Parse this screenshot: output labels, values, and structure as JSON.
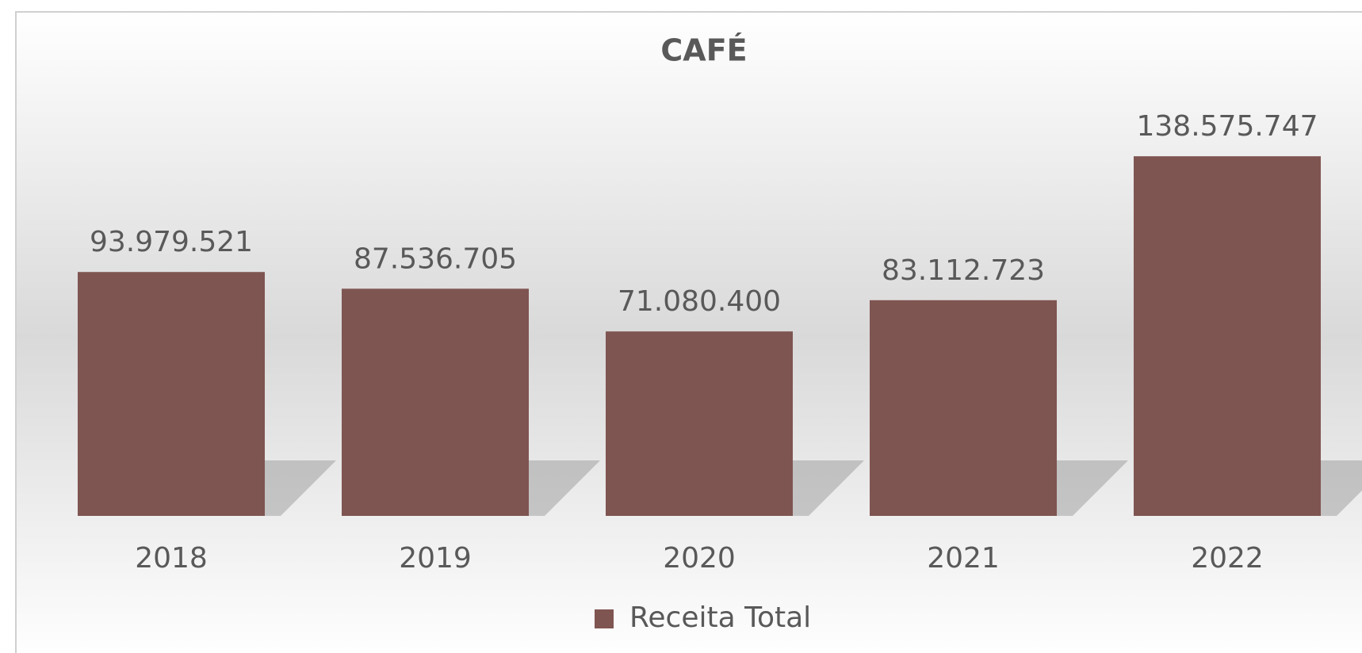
{
  "chart_data": {
    "type": "bar",
    "title": "CAFÉ",
    "categories": [
      "2018",
      "2019",
      "2020",
      "2021",
      "2022"
    ],
    "series": [
      {
        "name": "Receita Total",
        "color": "#7f5551",
        "values": [
          93979521,
          87536705,
          71080400,
          83112723,
          138575747
        ],
        "value_labels": [
          "93.979.521",
          "87.536.705",
          "71.080.400",
          "83.112.723",
          "138.575.747"
        ]
      }
    ],
    "ylim": [
      0,
      160000000
    ],
    "legend": "bottom"
  }
}
